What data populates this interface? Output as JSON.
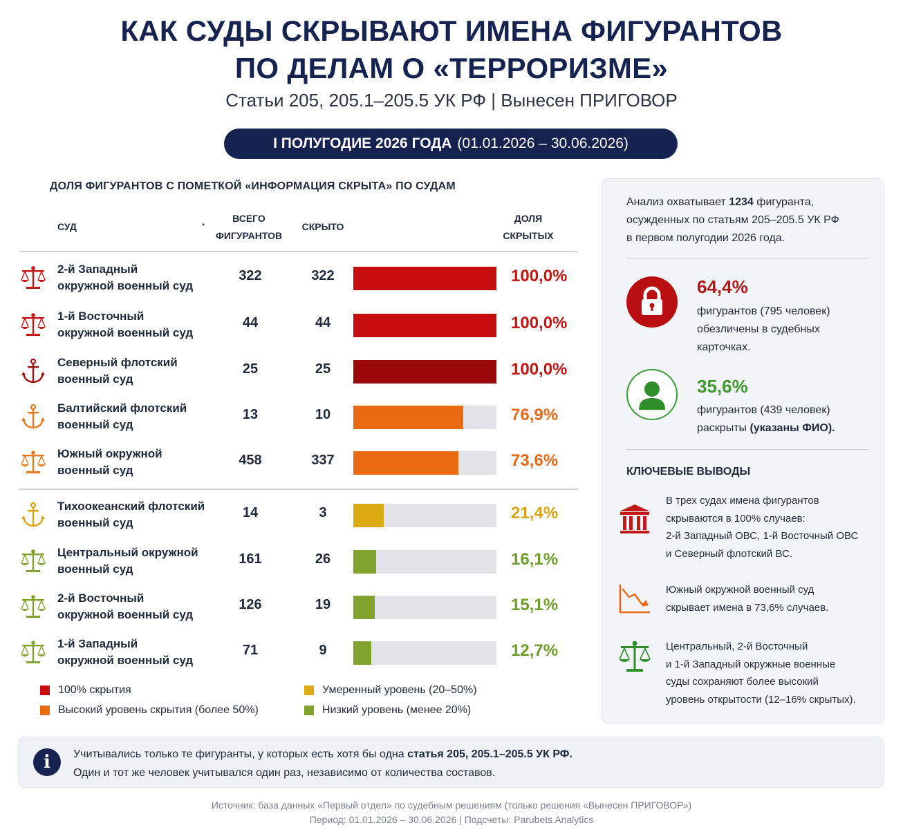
{
  "header": {
    "title_line1": "КАК СУДЫ СКРЫВАЮТ ИМЕНА ФИГУРАНТОВ",
    "title_line2": "ПО ДЕЛАМ О «ТЕРРОРИЗМЕ»",
    "subtitle": "Статьи 205, 205.1–205.5 УК РФ | Вынесен ПРИГОВОР",
    "period_label": "I ПОЛУГОДИЕ 2026 ГОДА",
    "period_range": "(01.01.2026 – 30.06.2026)"
  },
  "table": {
    "title": "ДОЛЯ ФИГУРАНТОВ С ПОМЕТКОЙ «ИНФОРМАЦИЯ СКРЫТА» ПО СУДАМ",
    "col_court": "СУД",
    "col_dot": "•",
    "col_total_1": "ВСЕГО",
    "col_total_2": "ФИГУРАНТОВ",
    "col_hidden": "СКРЫТО",
    "col_share_1": "ДОЛЯ",
    "col_share_2": "СКРЫТЫХ"
  },
  "colors": {
    "full": "#c70d0d",
    "full_dark": "#9b0a0a",
    "high": "#ea6a12",
    "moderate": "#dcab12",
    "low": "#7fa32c",
    "navy": "#16224f",
    "green_text": "#3c9a2e"
  },
  "chart_data": {
    "type": "bar",
    "orientation": "horizontal",
    "xlim": [
      0,
      100
    ],
    "rows": [
      {
        "court_line1": "2-й Западный",
        "court_line2": "окружной военный суд",
        "icon": "scales-icon",
        "total": "322",
        "hidden": "322",
        "share": 100.0,
        "share_label": "100,0%",
        "level": "full"
      },
      {
        "court_line1": "1-й Восточный",
        "court_line2": "окружной военный суд",
        "icon": "scales-icon",
        "total": "44",
        "hidden": "44",
        "share": 100.0,
        "share_label": "100,0%",
        "level": "full"
      },
      {
        "court_line1": "Северный флотский",
        "court_line2": "военный суд",
        "icon": "anchor-icon",
        "total": "25",
        "hidden": "25",
        "share": 100.0,
        "share_label": "100,0%",
        "level": "full_dark"
      },
      {
        "court_line1": "Балтийский флотский",
        "court_line2": "военный суд",
        "icon": "anchor-icon",
        "total": "13",
        "hidden": "10",
        "share": 76.9,
        "share_label": "76,9%",
        "level": "high"
      },
      {
        "court_line1": "Южный окружной",
        "court_line2": "военный суд",
        "icon": "scales-icon",
        "total": "458",
        "hidden": "337",
        "share": 73.6,
        "share_label": "73,6%",
        "level": "high"
      },
      {
        "court_line1": "Тихоокеанский флотский",
        "court_line2": "военный суд",
        "icon": "anchor-icon",
        "total": "14",
        "hidden": "3",
        "share": 21.4,
        "share_label": "21,4%",
        "level": "moderate"
      },
      {
        "court_line1": "Центральный окружной",
        "court_line2": "военный суд",
        "icon": "scales-icon",
        "total": "161",
        "hidden": "26",
        "share": 16.1,
        "share_label": "16,1%",
        "level": "low"
      },
      {
        "court_line1": "2-й Восточный",
        "court_line2": "окружной военный суд",
        "icon": "scales-icon",
        "total": "126",
        "hidden": "19",
        "share": 15.1,
        "share_label": "15,1%",
        "level": "low"
      },
      {
        "court_line1": "1-й Западный",
        "court_line2": "окружной военный суд",
        "icon": "scales-icon",
        "total": "71",
        "hidden": "9",
        "share": 12.7,
        "share_label": "12,7%",
        "level": "low"
      }
    ],
    "legend": [
      {
        "label": "100% скрытия",
        "level": "full"
      },
      {
        "label": "Высокий уровень скрытия (более 50%)",
        "level": "high"
      },
      {
        "label": "Умеренный уровень (20–50%)",
        "level": "moderate"
      },
      {
        "label": "Низкий уровень (менее 20%)",
        "level": "low"
      }
    ]
  },
  "side": {
    "intro_1": "Анализ охватывает ",
    "intro_bold": "1234",
    "intro_2": " фигуранта,",
    "intro_line2": "осужденных по статьям 205–205.5 УК РФ",
    "intro_line3": "в первом полугодии 2026 года.",
    "stat_hidden_pct": "64,4%",
    "stat_hidden_line1": "фигурантов (795 человек)",
    "stat_hidden_line2": "обезличены в судебных",
    "stat_hidden_line3": "карточках.",
    "stat_open_pct": "35,6%",
    "stat_open_line1": "фигурантов (439 человек)",
    "stat_open_line2a": "раскрыты ",
    "stat_open_line2b": "(указаны ФИО).",
    "key_title": "КЛЮЧЕВЫЕ ВЫВОДЫ",
    "key1_l1": "В трех судах имена фигурантов",
    "key1_l2": "скрываются в 100% случаев:",
    "key1_l3": "2-й Западный ОВС, 1-й Восточный ОВС",
    "key1_l4": "и Северный флотский ВС.",
    "key2_l1": "Южный окружной военный суд",
    "key2_l2": "скрывает имена в 73,6% случаев.",
    "key3_l1": "Центральный, 2-й Восточный",
    "key3_l2": "и 1-й Западный окружные военные",
    "key3_l3": "суды сохраняют более высокий",
    "key3_l4": "уровень открытости (12–16% скрытых)."
  },
  "note": {
    "icon": "info-icon",
    "glyph": "i",
    "line1a": "Учитывались только те фигуранты, у которых есть хотя бы одна ",
    "line1b": "статья 205, 205.1–205.5 УК РФ.",
    "line2": "Один и тот же человек учитывался один раз, независимо от количества составов."
  },
  "footer": {
    "source": "Источник: база данных «Первый отдел» по судебным решениям (только решения «Вынесен ПРИГОВОР»)",
    "period": "Период: 01.01.2026 – 30.06.2026 | Подсчеты: Parubets Analytics"
  }
}
